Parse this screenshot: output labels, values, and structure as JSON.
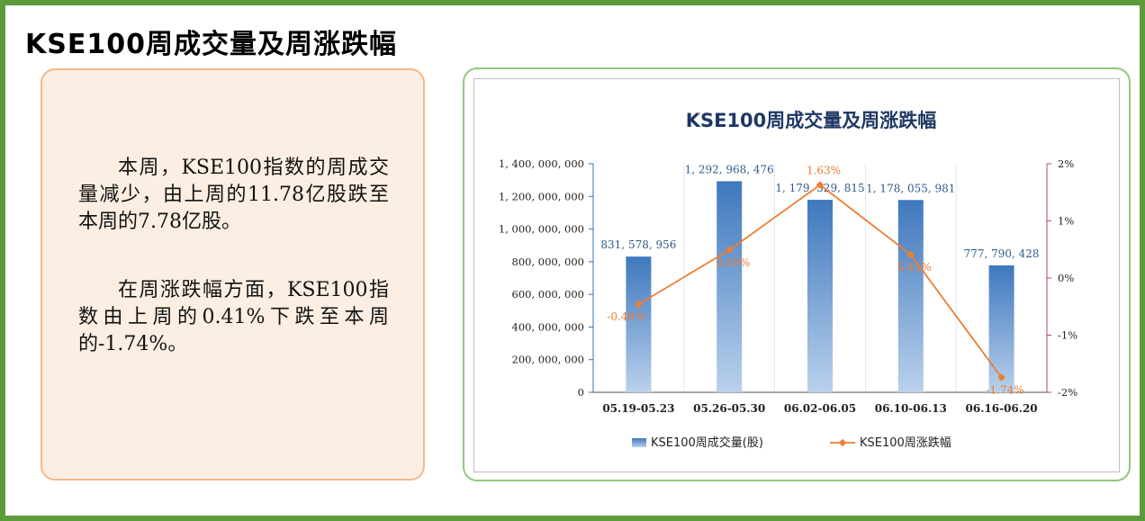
{
  "page": {
    "title": "KSE100周成交量及周涨跌幅"
  },
  "summary": {
    "paragraph1": "本周，KSE100指数的周成交量减少，由上周的11.78亿股跌至本周的7.78亿股。",
    "paragraph2": "在周涨跌幅方面，KSE100指数由上周的0.41%下跌至本周的-1.74%。"
  },
  "colors": {
    "frame": "#5e9b3c",
    "bar_top": "#3f78bd",
    "bar_bottom": "#b9d1ec",
    "line": "#ed7d31",
    "label_bar": "#2f5b8a",
    "label_line": "#ed7d31",
    "right_axis": "#b04a5a"
  },
  "chart_data": {
    "type": "bar",
    "title": "KSE100周成交量及周涨跌幅",
    "categories": [
      "05.19-05.23",
      "05.26-05.30",
      "06.02-06.05",
      "06.10-06.13",
      "06.16-06.20"
    ],
    "series": [
      {
        "name": "KSE100周成交量(股)",
        "type": "bar",
        "axis": "left",
        "values": [
          831578956,
          1292968476,
          1179329815,
          1178055981,
          777790428
        ],
        "labels": [
          "831, 578, 956",
          "1, 292, 968, 476",
          "1, 179, 329, 815",
          "1, 178, 055, 981",
          "777, 790, 428"
        ]
      },
      {
        "name": "KSE100周涨跌幅",
        "type": "line",
        "axis": "right",
        "values": [
          -0.46,
          0.49,
          1.63,
          0.41,
          -1.74
        ],
        "labels": [
          "-0.46%",
          "0.49%",
          "1.63%",
          "0.41%",
          "-1.74%"
        ]
      }
    ],
    "y_left": {
      "min": 0,
      "max": 1400000000,
      "ticks": [
        0,
        200000000,
        400000000,
        600000000,
        800000000,
        1000000000,
        1200000000,
        1400000000
      ],
      "tick_labels": [
        "0",
        "200, 000, 000",
        "400, 000, 000",
        "600, 000, 000",
        "800, 000, 000",
        "1, 000, 000, 000",
        "1, 200, 000, 000",
        "1, 400, 000, 000"
      ]
    },
    "y_right": {
      "min": -2,
      "max": 2,
      "ticks": [
        -2,
        -1,
        0,
        1,
        2
      ],
      "tick_labels": [
        "-2%",
        "-1%",
        "0%",
        "1%",
        "2%"
      ]
    },
    "legend_position": "bottom"
  }
}
